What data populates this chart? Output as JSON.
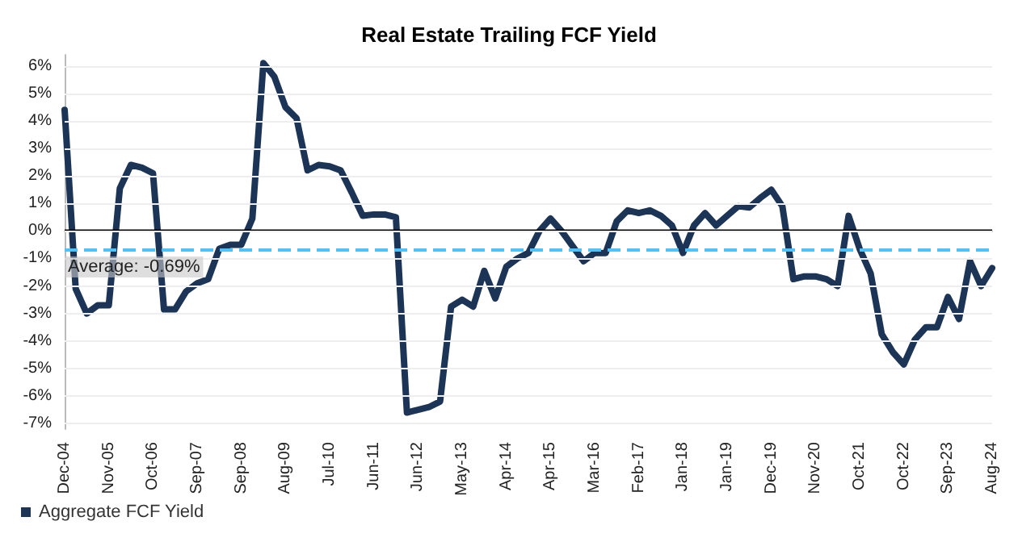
{
  "chart_data": {
    "type": "line",
    "title": "Real Estate Trailing FCF Yield",
    "categories": [
      "Dec-04",
      null,
      null,
      null,
      "Nov-05",
      null,
      null,
      null,
      "Oct-06",
      null,
      null,
      null,
      "Sep-07",
      null,
      null,
      null,
      "Sep-08",
      null,
      null,
      null,
      "Aug-09",
      null,
      null,
      null,
      "Jul-10",
      null,
      null,
      null,
      "Jun-11",
      null,
      null,
      null,
      "Jun-12",
      null,
      null,
      null,
      "May-13",
      null,
      null,
      null,
      "Apr-14",
      null,
      null,
      null,
      "Apr-15",
      null,
      null,
      null,
      "Mar-16",
      null,
      null,
      null,
      "Feb-17",
      null,
      null,
      null,
      "Jan-18",
      null,
      null,
      null,
      "Jan-19",
      null,
      null,
      null,
      "Dec-19",
      null,
      null,
      null,
      "Nov-20",
      null,
      null,
      null,
      "Oct-21",
      null,
      null,
      null,
      "Oct-22",
      null,
      null,
      null,
      "Sep-23",
      null,
      null,
      null,
      "Aug-24"
    ],
    "series": [
      {
        "name": "Aggregate FCF Yield",
        "color": "#1c3557",
        "values": [
          4.4,
          -2.1,
          -3.0,
          -2.7,
          -2.7,
          1.55,
          2.4,
          2.3,
          2.1,
          -2.85,
          -2.85,
          -2.2,
          -1.9,
          -1.75,
          -0.65,
          -0.5,
          -0.5,
          0.45,
          6.1,
          5.6,
          4.5,
          4.1,
          2.2,
          2.4,
          2.35,
          2.2,
          1.4,
          0.55,
          0.6,
          0.6,
          0.5,
          -6.6,
          -6.5,
          -6.4,
          -6.2,
          -2.75,
          -2.5,
          -2.75,
          -1.45,
          -2.45,
          -1.3,
          -1.0,
          -0.8,
          0,
          0.45,
          0,
          -0.55,
          -1.1,
          -0.8,
          -0.8,
          0.35,
          0.75,
          0.65,
          0.75,
          0.55,
          0.2,
          -0.8,
          0.2,
          0.65,
          0.2,
          0.55,
          0.9,
          0.85,
          1.2,
          1.5,
          0.9,
          -1.75,
          -1.65,
          -1.65,
          -1.75,
          -2.0,
          0.55,
          -0.65,
          -1.55,
          -3.75,
          -4.4,
          -4.85,
          -3.95,
          -3.5,
          -3.5,
          -2.4,
          -3.2,
          -1.1,
          -2.0,
          -1.35
        ]
      }
    ],
    "ylim": [
      -7.2,
      6.4
    ],
    "yticks": [
      {
        "value": -7,
        "label": "-7%"
      },
      {
        "value": -6,
        "label": "-6%"
      },
      {
        "value": -5,
        "label": "-5%"
      },
      {
        "value": -4,
        "label": "-4%"
      },
      {
        "value": -3,
        "label": "-3%"
      },
      {
        "value": -2,
        "label": "-2%"
      },
      {
        "value": -1,
        "label": "-1%"
      },
      {
        "value": 0,
        "label": "0%"
      },
      {
        "value": 1,
        "label": "1%"
      },
      {
        "value": 2,
        "label": "2%"
      },
      {
        "value": 3,
        "label": "3%"
      },
      {
        "value": 4,
        "label": "4%"
      },
      {
        "value": 5,
        "label": "5%"
      },
      {
        "value": 6,
        "label": "6%"
      }
    ],
    "ref_lines": [
      {
        "axis": "y",
        "value": 0,
        "label": null,
        "color": "#000000",
        "line_style": "solid"
      },
      {
        "axis": "y",
        "value": -0.69,
        "label": "Average: -0.69%",
        "color": "#4fc3f7",
        "line_style": "dashed"
      }
    ],
    "grid": "y",
    "legend": "bottom left",
    "marker": "none",
    "line_style": "solid"
  }
}
